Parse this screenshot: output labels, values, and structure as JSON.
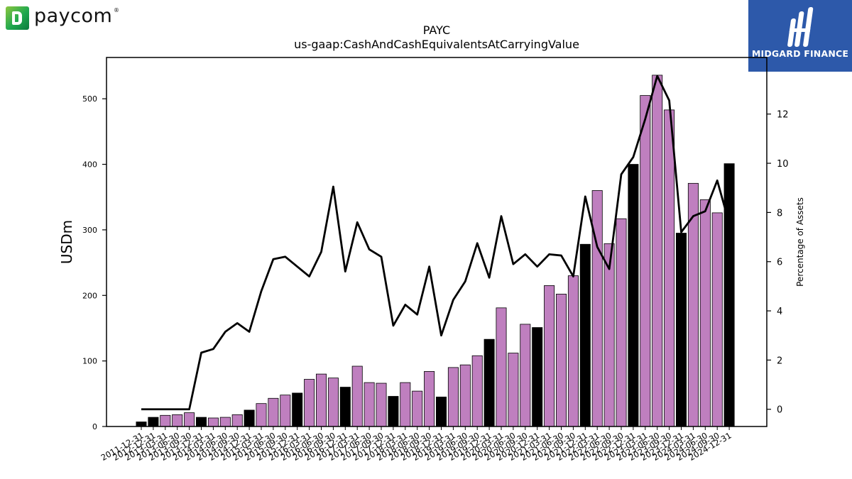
{
  "logo": {
    "text": "paycom",
    "reg_mark": "®"
  },
  "badge": {
    "text": "MIDGARD FINANCE"
  },
  "chart_data": {
    "type": "bar",
    "title": "PAYC",
    "subtitle": "us-gaap:CashAndCashEquivalentsAtCarryingValue",
    "ylabel": "USDm",
    "y2label": "Percentage of Assets",
    "ylim": [
      0,
      563
    ],
    "y2lim": [
      -0.7,
      14.3
    ],
    "yticks": [
      0,
      100,
      200,
      300,
      400,
      500
    ],
    "y2ticks": [
      0,
      2,
      4,
      6,
      8,
      10,
      12
    ],
    "bar_colors": {
      "year_end": "#000000",
      "quarter": "#bf7fbf"
    },
    "categories": [
      "2011-12-31",
      "2012-12-31",
      "2013-03-31",
      "2013-06-30",
      "2013-09-30",
      "2013-12-31",
      "2014-03-31",
      "2014-06-30",
      "2014-09-30",
      "2014-12-31",
      "2015-03-31",
      "2015-06-30",
      "2015-09-30",
      "2015-12-31",
      "2016-03-31",
      "2016-06-30",
      "2016-09-30",
      "2016-12-31",
      "2017-03-31",
      "2017-06-30",
      "2017-09-30",
      "2017-12-31",
      "2018-03-31",
      "2018-06-30",
      "2018-09-30",
      "2018-12-31",
      "2019-03-31",
      "2019-06-30",
      "2019-09-30",
      "2019-12-31",
      "2020-03-31",
      "2020-06-30",
      "2020-09-30",
      "2020-12-31",
      "2021-03-31",
      "2021-06-30",
      "2021-09-30",
      "2021-12-31",
      "2022-03-31",
      "2022-06-30",
      "2022-09-30",
      "2022-12-31",
      "2023-03-31",
      "2023-06-30",
      "2023-09-30",
      "2023-12-31",
      "2024-03-31",
      "2024-06-30",
      "2024-09-30",
      "2024-12-31"
    ],
    "tick_labels": [
      "2011-12-31",
      "2012-12-31",
      "2013-03-31",
      "2013-06-30",
      "2013-09-30",
      "2013-12-31",
      "2014-03-31",
      "2014-06-30",
      "2014-09-30",
      "2014-12-31",
      "2015-03-31",
      "2015-06-30",
      "2015-09-30",
      "2015-12-31",
      "2016-03-31",
      "2016-06-30",
      "2016-09-30",
      "2016-12-31",
      "2017-03-31",
      "2017-06-30",
      "2017-09-30",
      "2017-12-31",
      "2018-03-31",
      "2018-06-30",
      "2018-09-30",
      "2018-12-31",
      "2019-03-31",
      "2019-06-30",
      "2019-09-30",
      "2019-12-31",
      "2020-03-31",
      "2020-06-30",
      "2020-09-30",
      "2020-12-31",
      "2021-03-31",
      "2021-06-30",
      "2021-09-30",
      "2021-12-31",
      "2022-03-31",
      "2022-06-30",
      "2022-09-30",
      "2022-12-31",
      "2023-03-31",
      "2023-06-30",
      "2023-09-30",
      "2023-12-31",
      "2024-03-31",
      "2024-06-30",
      "2024-09-30",
      "2024-12-31"
    ],
    "series": [
      {
        "kind": "bar",
        "values": [
          7,
          14,
          17,
          18,
          21,
          14,
          13,
          14,
          18,
          25,
          35,
          43,
          48,
          51,
          72,
          80,
          74,
          60,
          92,
          67,
          66,
          46,
          67,
          54,
          84,
          45,
          90,
          94,
          108,
          133,
          181,
          112,
          156,
          151,
          215,
          202,
          230,
          278,
          360,
          279,
          317,
          400,
          505,
          536,
          483,
          295,
          371,
          346,
          326,
          401
        ]
      },
      {
        "kind": "line",
        "color": "#000000",
        "values": [
          0,
          0,
          0,
          0,
          0,
          2.3,
          2.45,
          3.15,
          3.5,
          3.15,
          4.8,
          6.1,
          6.2,
          5.8,
          5.4,
          6.4,
          9.05,
          5.6,
          7.6,
          6.5,
          6.2,
          3.4,
          4.25,
          3.85,
          5.8,
          3.0,
          4.45,
          5.2,
          6.75,
          5.35,
          7.85,
          5.9,
          6.3,
          5.8,
          6.3,
          6.25,
          5.4,
          8.65,
          6.6,
          5.7,
          9.55,
          10.25,
          11.8,
          13.55,
          12.55,
          7.2,
          7.85,
          8.05,
          9.3,
          7.55
        ]
      }
    ],
    "grid": false,
    "legend": "none"
  }
}
